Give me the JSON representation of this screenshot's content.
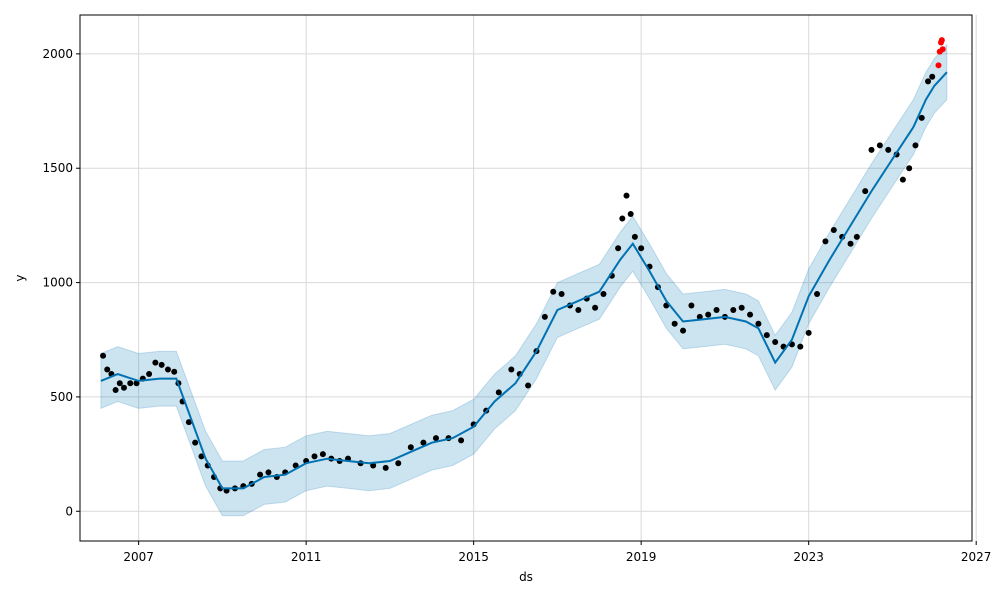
{
  "chart_data": {
    "type": "scatter",
    "title": "",
    "xlabel": "ds",
    "ylabel": "y",
    "xlim": [
      2005.6,
      2026.9
    ],
    "ylim": [
      -130,
      2170
    ],
    "grid": true,
    "x_ticks": [
      2007,
      2011,
      2015,
      2019,
      2023,
      2027
    ],
    "x_tick_labels": [
      "2007",
      "2011",
      "2015",
      "2019",
      "2023",
      "2027"
    ],
    "y_ticks": [
      0,
      500,
      1000,
      1500,
      2000
    ],
    "y_tick_labels": [
      "0",
      "500",
      "1000",
      "1500",
      "2000"
    ],
    "colors": {
      "observed": "#000000",
      "forecast_line": "#0072B2",
      "uncertainty_band": "#0072B2",
      "highlight": "#ff0000"
    },
    "series": [
      {
        "role": "observed",
        "points": [
          [
            2006.15,
            680
          ],
          [
            2006.25,
            620
          ],
          [
            2006.35,
            600
          ],
          [
            2006.45,
            530
          ],
          [
            2006.55,
            560
          ],
          [
            2006.65,
            540
          ],
          [
            2006.8,
            560
          ],
          [
            2006.95,
            560
          ],
          [
            2007.1,
            580
          ],
          [
            2007.25,
            600
          ],
          [
            2007.4,
            650
          ],
          [
            2007.55,
            640
          ],
          [
            2007.7,
            620
          ],
          [
            2007.85,
            610
          ],
          [
            2007.95,
            560
          ],
          [
            2008.05,
            480
          ],
          [
            2008.2,
            390
          ],
          [
            2008.35,
            300
          ],
          [
            2008.5,
            240
          ],
          [
            2008.65,
            200
          ],
          [
            2008.8,
            150
          ],
          [
            2008.95,
            100
          ],
          [
            2009.1,
            90
          ],
          [
            2009.3,
            100
          ],
          [
            2009.5,
            110
          ],
          [
            2009.7,
            120
          ],
          [
            2009.9,
            160
          ],
          [
            2010.1,
            170
          ],
          [
            2010.3,
            150
          ],
          [
            2010.5,
            170
          ],
          [
            2010.75,
            200
          ],
          [
            2011.0,
            220
          ],
          [
            2011.2,
            240
          ],
          [
            2011.4,
            250
          ],
          [
            2011.6,
            230
          ],
          [
            2011.8,
            220
          ],
          [
            2012.0,
            230
          ],
          [
            2012.3,
            210
          ],
          [
            2012.6,
            200
          ],
          [
            2012.9,
            190
          ],
          [
            2013.2,
            210
          ],
          [
            2013.5,
            280
          ],
          [
            2013.8,
            300
          ],
          [
            2014.1,
            320
          ],
          [
            2014.4,
            320
          ],
          [
            2014.7,
            310
          ],
          [
            2015.0,
            380
          ],
          [
            2015.3,
            440
          ],
          [
            2015.6,
            520
          ],
          [
            2015.9,
            620
          ],
          [
            2016.1,
            600
          ],
          [
            2016.3,
            550
          ],
          [
            2016.5,
            700
          ],
          [
            2016.7,
            850
          ],
          [
            2016.9,
            960
          ],
          [
            2017.1,
            950
          ],
          [
            2017.3,
            900
          ],
          [
            2017.5,
            880
          ],
          [
            2017.7,
            930
          ],
          [
            2017.9,
            890
          ],
          [
            2018.1,
            950
          ],
          [
            2018.3,
            1030
          ],
          [
            2018.45,
            1150
          ],
          [
            2018.55,
            1280
          ],
          [
            2018.65,
            1380
          ],
          [
            2018.75,
            1300
          ],
          [
            2018.85,
            1200
          ],
          [
            2019.0,
            1150
          ],
          [
            2019.2,
            1070
          ],
          [
            2019.4,
            980
          ],
          [
            2019.6,
            900
          ],
          [
            2019.8,
            820
          ],
          [
            2020.0,
            790
          ],
          [
            2020.2,
            900
          ],
          [
            2020.4,
            850
          ],
          [
            2020.6,
            860
          ],
          [
            2020.8,
            880
          ],
          [
            2021.0,
            850
          ],
          [
            2021.2,
            880
          ],
          [
            2021.4,
            890
          ],
          [
            2021.6,
            860
          ],
          [
            2021.8,
            820
          ],
          [
            2022.0,
            770
          ],
          [
            2022.2,
            740
          ],
          [
            2022.4,
            720
          ],
          [
            2022.6,
            730
          ],
          [
            2022.8,
            720
          ],
          [
            2023.0,
            780
          ],
          [
            2023.2,
            950
          ],
          [
            2023.4,
            1180
          ],
          [
            2023.6,
            1230
          ],
          [
            2023.8,
            1200
          ],
          [
            2024.0,
            1170
          ],
          [
            2024.15,
            1200
          ],
          [
            2024.35,
            1400
          ],
          [
            2024.5,
            1580
          ],
          [
            2024.7,
            1600
          ],
          [
            2024.9,
            1580
          ],
          [
            2025.1,
            1560
          ],
          [
            2025.25,
            1450
          ],
          [
            2025.4,
            1500
          ],
          [
            2025.55,
            1600
          ],
          [
            2025.7,
            1720
          ],
          [
            2025.85,
            1880
          ],
          [
            2025.95,
            1900
          ]
        ]
      },
      {
        "role": "highlight",
        "points": [
          [
            2026.1,
            1950
          ],
          [
            2026.13,
            2010
          ],
          [
            2026.16,
            2050
          ],
          [
            2026.18,
            2060
          ],
          [
            2026.2,
            2020
          ]
        ]
      },
      {
        "role": "forecast",
        "points": [
          [
            2006.1,
            570
          ],
          [
            2006.5,
            600
          ],
          [
            2007.0,
            570
          ],
          [
            2007.5,
            580
          ],
          [
            2007.9,
            580
          ],
          [
            2008.2,
            430
          ],
          [
            2008.6,
            230
          ],
          [
            2009.0,
            100
          ],
          [
            2009.5,
            100
          ],
          [
            2010.0,
            150
          ],
          [
            2010.5,
            160
          ],
          [
            2011.0,
            210
          ],
          [
            2011.5,
            230
          ],
          [
            2012.0,
            220
          ],
          [
            2012.5,
            210
          ],
          [
            2013.0,
            220
          ],
          [
            2013.5,
            260
          ],
          [
            2014.0,
            300
          ],
          [
            2014.5,
            320
          ],
          [
            2015.0,
            370
          ],
          [
            2015.5,
            480
          ],
          [
            2016.0,
            560
          ],
          [
            2016.5,
            700
          ],
          [
            2017.0,
            880
          ],
          [
            2017.5,
            920
          ],
          [
            2018.0,
            960
          ],
          [
            2018.5,
            1100
          ],
          [
            2018.8,
            1170
          ],
          [
            2019.2,
            1050
          ],
          [
            2019.6,
            920
          ],
          [
            2020.0,
            830
          ],
          [
            2020.5,
            840
          ],
          [
            2021.0,
            850
          ],
          [
            2021.5,
            830
          ],
          [
            2021.8,
            800
          ],
          [
            2022.2,
            650
          ],
          [
            2022.6,
            750
          ],
          [
            2023.0,
            940
          ],
          [
            2023.5,
            1100
          ],
          [
            2024.0,
            1250
          ],
          [
            2024.5,
            1400
          ],
          [
            2025.0,
            1540
          ],
          [
            2025.5,
            1680
          ],
          [
            2025.8,
            1800
          ],
          [
            2026.0,
            1860
          ],
          [
            2026.3,
            1920
          ]
        ]
      }
    ],
    "uncertainty_band_halfwidth": 120
  }
}
